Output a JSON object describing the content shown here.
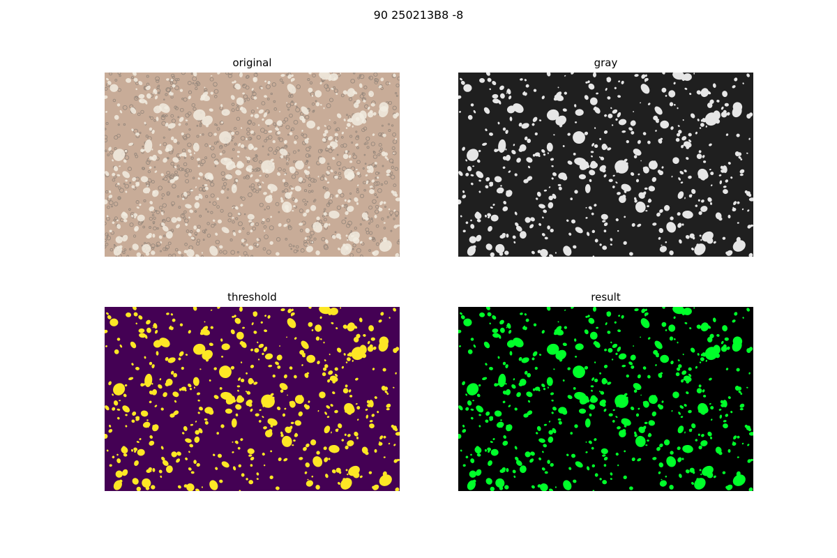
{
  "figure": {
    "title": "90 250213B8 -8"
  },
  "panels": [
    {
      "title": "original",
      "background": "#c8ac98",
      "blob": "#f2ece0",
      "speck": "#6f6b66"
    },
    {
      "title": "gray",
      "background": "#1f1f1f",
      "blob": "#e6e6e6"
    },
    {
      "title": "threshold",
      "background": "#440154",
      "blob": "#fde725"
    },
    {
      "title": "result",
      "background": "#000000",
      "blob": "#00ff2a"
    }
  ]
}
